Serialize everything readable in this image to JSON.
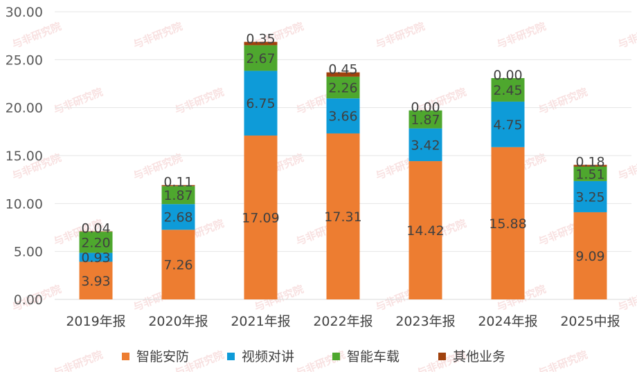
{
  "chart_data": {
    "type": "bar",
    "stacked": true,
    "categories": [
      "2019年报",
      "2020年报",
      "2021年报",
      "2022年报",
      "2023年报",
      "2024年报",
      "2025中报"
    ],
    "series": [
      {
        "name": "智能安防",
        "color": "#ED7D31",
        "values": [
          3.93,
          7.26,
          17.09,
          17.31,
          14.42,
          15.88,
          9.09
        ]
      },
      {
        "name": "视频对讲",
        "color": "#0E9BD8",
        "values": [
          0.93,
          2.68,
          6.75,
          3.66,
          3.42,
          4.75,
          3.25
        ]
      },
      {
        "name": "智能车载",
        "color": "#4EA72E",
        "values": [
          2.2,
          1.87,
          2.67,
          2.26,
          1.87,
          2.45,
          1.51
        ]
      },
      {
        "name": "其他业务",
        "color": "#A0410D",
        "values": [
          0.04,
          0.11,
          0.35,
          0.45,
          0.0,
          0.0,
          0.18
        ]
      }
    ],
    "ylim": [
      0,
      30
    ],
    "yticks": [
      "0.00",
      "5.00",
      "10.00",
      "15.00",
      "20.00",
      "25.00",
      "30.00"
    ],
    "grid": true,
    "legend_position": "bottom",
    "title": "",
    "xlabel": "",
    "ylabel": ""
  },
  "watermark": "与非研究院"
}
